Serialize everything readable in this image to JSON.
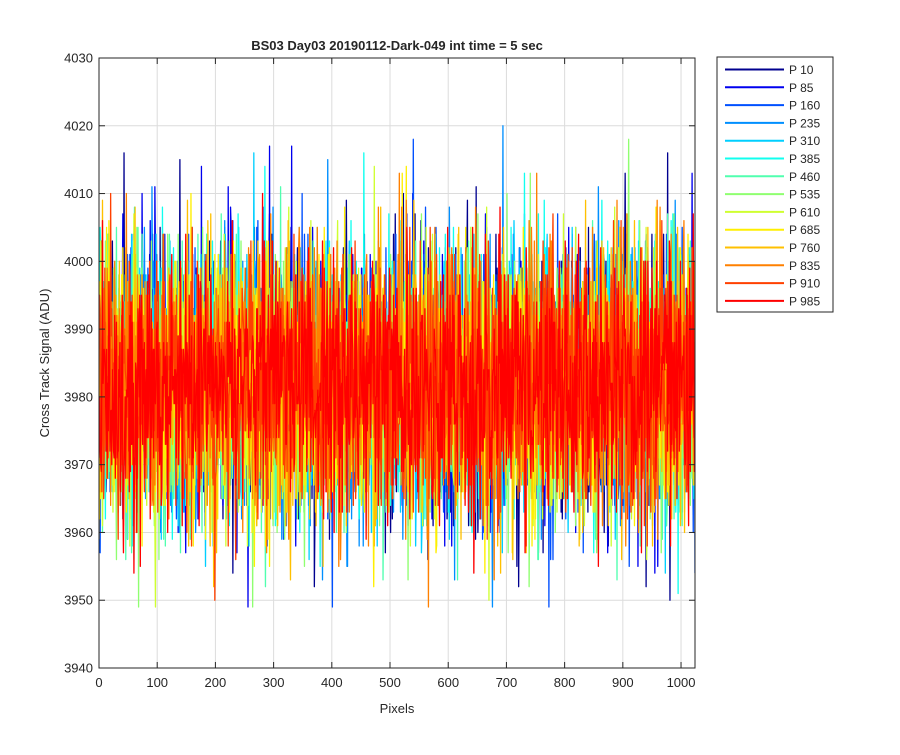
{
  "chart_data": {
    "type": "line",
    "title": "BS03 Day03 20190112-Dark-049 int time = 5 sec",
    "xlabel": "Pixels",
    "ylabel": "Cross Track Signal (ADU)",
    "xlim": [
      0,
      1024
    ],
    "ylim": [
      3940,
      4030
    ],
    "xticks": [
      0,
      100,
      200,
      300,
      400,
      500,
      600,
      700,
      800,
      900,
      1000
    ],
    "yticks": [
      3940,
      3950,
      3960,
      3970,
      3980,
      3990,
      4000,
      4010,
      4020,
      4030
    ],
    "grid": true,
    "legend_position": "outside-top-right",
    "noise_profile": {
      "mean": 3982,
      "typical_range": [
        3957,
        4006
      ],
      "max_observed": 4023,
      "min_observed": 3949
    },
    "series": [
      {
        "name": "P 10",
        "color": "#00008F"
      },
      {
        "name": "P 85",
        "color": "#0000EF"
      },
      {
        "name": "P 160",
        "color": "#0050FF"
      },
      {
        "name": "P 235",
        "color": "#008FFF"
      },
      {
        "name": "P 310",
        "color": "#00CFFF"
      },
      {
        "name": "P 385",
        "color": "#10FFEF"
      },
      {
        "name": "P 460",
        "color": "#50FFAF"
      },
      {
        "name": "P 535",
        "color": "#8FFF70"
      },
      {
        "name": "P 610",
        "color": "#CFFF30"
      },
      {
        "name": "P 685",
        "color": "#FFEF00"
      },
      {
        "name": "P 760",
        "color": "#FFC000"
      },
      {
        "name": "P 835",
        "color": "#FF8000"
      },
      {
        "name": "P 910",
        "color": "#FF4000"
      },
      {
        "name": "P 985",
        "color": "#FF0000"
      }
    ]
  }
}
